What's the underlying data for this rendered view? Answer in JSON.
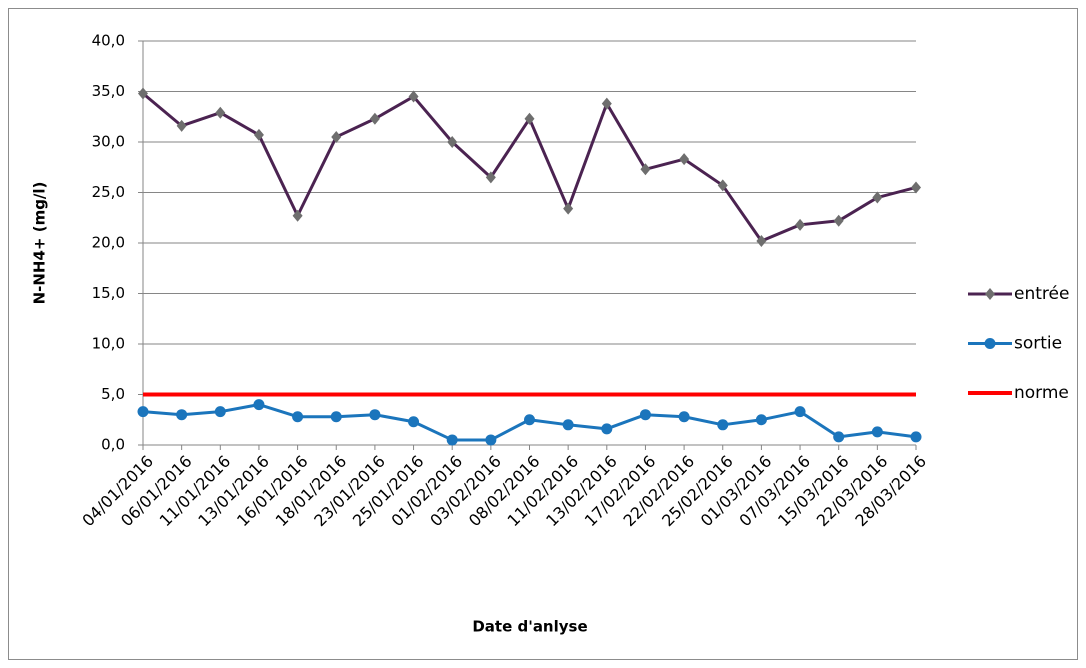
{
  "chart_data": {
    "type": "line",
    "x_label": "Date d'anlyse",
    "y_label": "N-NH4+ (mg/l)",
    "categories": [
      "04/01/2016",
      "06/01/2016",
      "11/01/2016",
      "13/01/2016",
      "16/01/2016",
      "18/01/2016",
      "23/01/2016",
      "25/01/2016",
      "01/02/2016",
      "03/02/2016",
      "08/02/2016",
      "11/02/2016",
      "13/02/2016",
      "17/02/2016",
      "22/02/2016",
      "25/02/2016",
      "01/03/2016",
      "07/03/2016",
      "15/03/2016",
      "22/03/2016",
      "28/03/2016"
    ],
    "series": [
      {
        "name": "entrée",
        "color": "#4b2351",
        "marker": "diamond",
        "marker_color": "#6e6e6e",
        "values": [
          34.8,
          31.6,
          32.9,
          30.7,
          22.7,
          30.5,
          32.3,
          34.5,
          30.0,
          26.5,
          32.3,
          23.4,
          33.8,
          27.3,
          28.3,
          25.7,
          20.2,
          21.8,
          22.2,
          24.5,
          25.5
        ]
      },
      {
        "name": "sortie",
        "color": "#1b75bc",
        "marker": "circle",
        "marker_color": "#1b75bc",
        "values": [
          3.3,
          3.0,
          3.3,
          4.0,
          2.8,
          2.8,
          3.0,
          2.3,
          0.5,
          0.5,
          2.5,
          2.0,
          1.6,
          3.0,
          2.8,
          2.0,
          2.5,
          3.3,
          0.8,
          1.3,
          0.8
        ]
      },
      {
        "name": "norme",
        "color": "#ff0000",
        "marker": "none",
        "values": [
          5,
          5,
          5,
          5,
          5,
          5,
          5,
          5,
          5,
          5,
          5,
          5,
          5,
          5,
          5,
          5,
          5,
          5,
          5,
          5,
          5
        ]
      }
    ],
    "ylim": [
      0,
      40
    ],
    "yticks": [
      {
        "value": 0,
        "label": "0,0"
      },
      {
        "value": 5,
        "label": "5,0"
      },
      {
        "value": 10,
        "label": "10,0"
      },
      {
        "value": 15,
        "label": "15,0"
      },
      {
        "value": 20,
        "label": "20,0"
      },
      {
        "value": 25,
        "label": "25,0"
      },
      {
        "value": 30,
        "label": "30,0"
      },
      {
        "value": 35,
        "label": "35,0"
      },
      {
        "value": 40,
        "label": "40,0"
      }
    ],
    "grid": true,
    "legend": "right"
  }
}
